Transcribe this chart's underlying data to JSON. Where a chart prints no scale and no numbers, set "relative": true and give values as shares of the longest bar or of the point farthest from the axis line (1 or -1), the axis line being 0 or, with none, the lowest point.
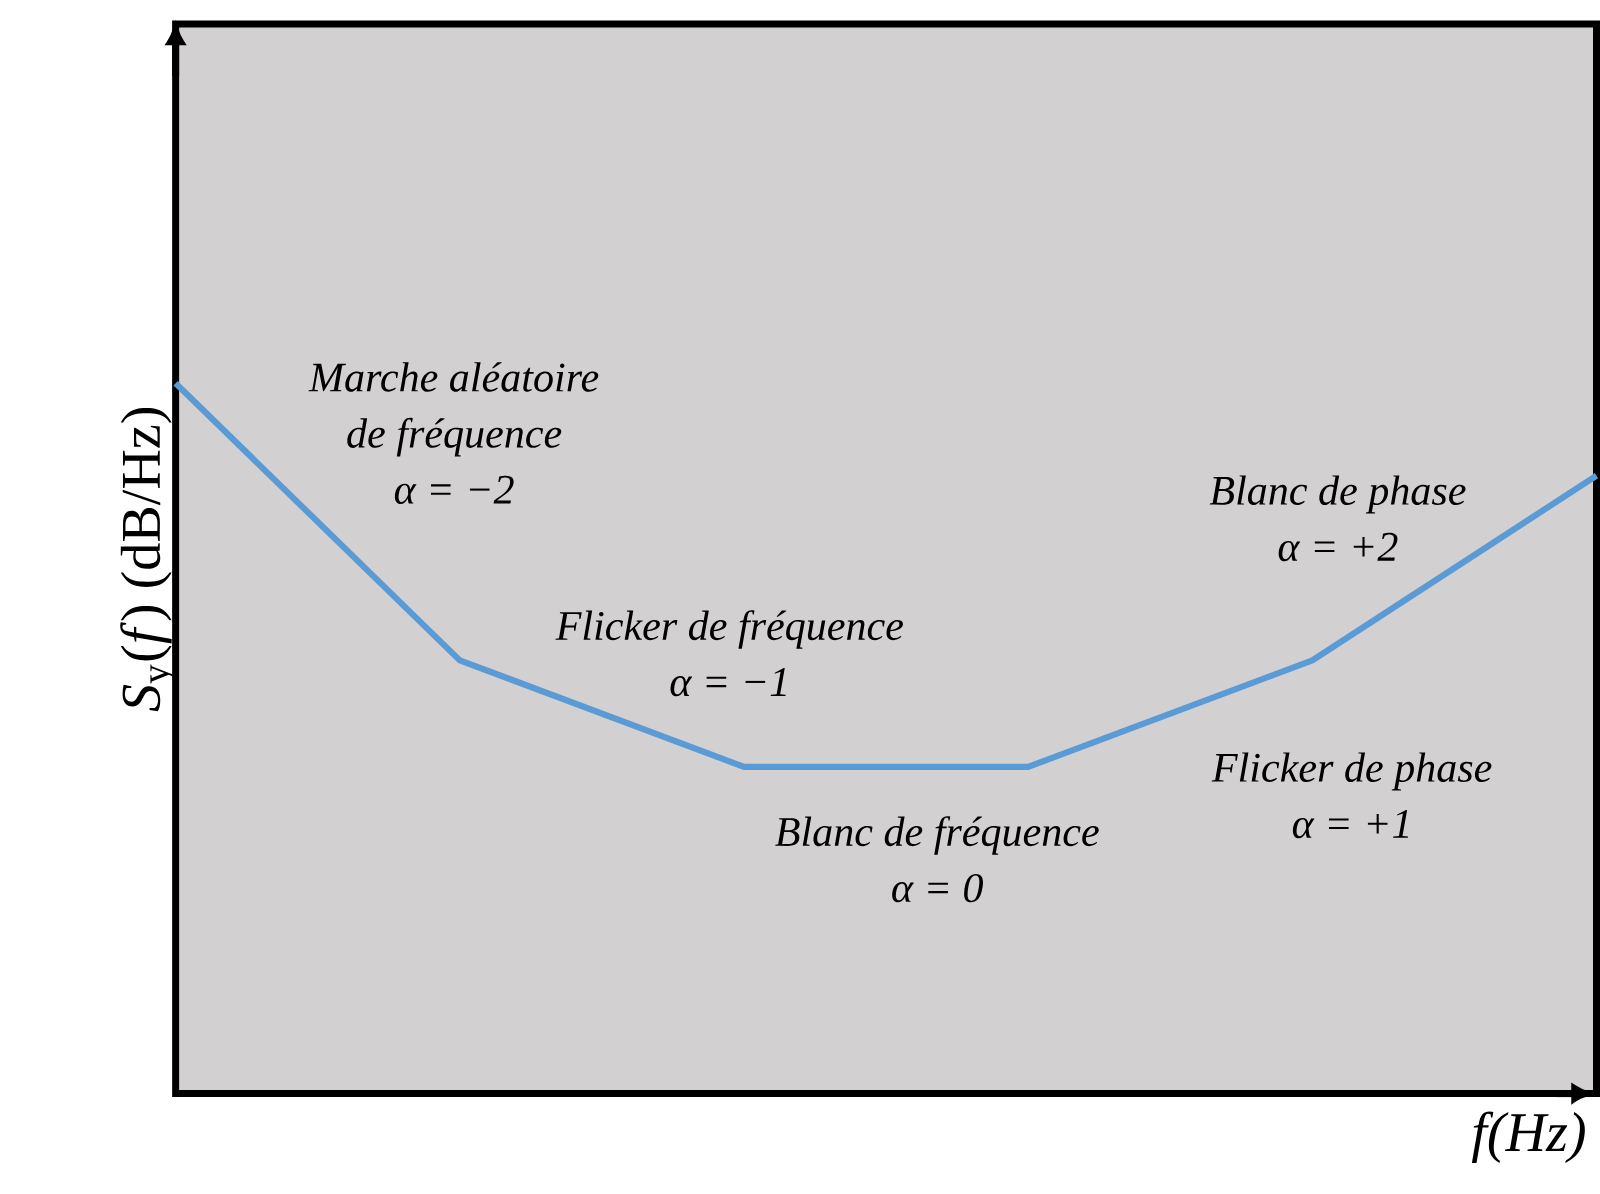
{
  "chart_data": {
    "type": "line",
    "relative": true,
    "xlabel": "f(Hz)",
    "ylabel": "*S*$_{y}$(*f*) (dB/Hz)",
    "categories": [
      null,
      null,
      null,
      null,
      null,
      null
    ],
    "series": [
      {
        "color": "#5b9bd5",
        "values": [
          1,
          0.61,
          0.46,
          0.46,
          0.61,
          0.87
        ]
      }
    ],
    "annotations": [
      "Marche aléatoire",
      "de fréquence",
      "α = −2",
      "Flicker de fréquence",
      "α = −1",
      "Blanc de fréquence",
      "α = 0",
      "Blanc de phase",
      "α = +2",
      "Flicker de phase",
      "α = +1"
    ],
    "marker": "none",
    "line_style": "solid"
  }
}
